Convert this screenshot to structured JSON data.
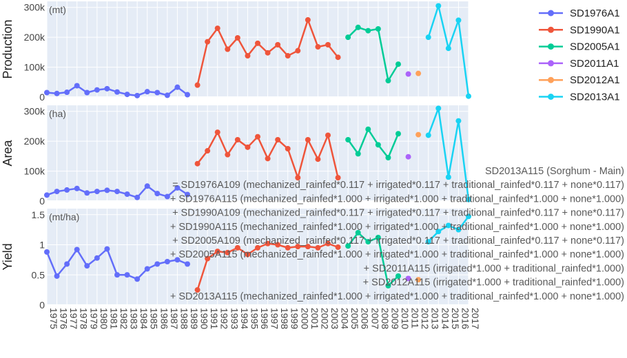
{
  "chart_data": {
    "type": "line",
    "x_categories": [
      "1975",
      "1976",
      "1977",
      "1978",
      "1979",
      "1980",
      "1981",
      "1982",
      "1983",
      "1984",
      "1985",
      "1986",
      "1987",
      "1988",
      "1989",
      "1990",
      "1991",
      "1992",
      "1993",
      "1994",
      "1995",
      "1996",
      "1997",
      "1998",
      "1999",
      "2000",
      "2001",
      "2002",
      "2003",
      "2004",
      "2005",
      "2006",
      "2007",
      "2008",
      "2009",
      "2010",
      "2011",
      "2012",
      "2013",
      "2014",
      "2015",
      "2016",
      "2017"
    ],
    "grid": true,
    "legend_position": "top-right",
    "panels": [
      {
        "key": "production",
        "ylabel": "Production",
        "unit": "(mt)",
        "ylim": [
          0,
          320000
        ],
        "ticks": [
          {
            "v": 0,
            "label": "0"
          },
          {
            "v": 100000,
            "label": "100k"
          },
          {
            "v": 200000,
            "label": "200k"
          },
          {
            "v": 300000,
            "label": "300k"
          }
        ]
      },
      {
        "key": "area",
        "ylabel": "Area",
        "unit": "(ha)",
        "ylim": [
          0,
          320000
        ],
        "ticks": [
          {
            "v": 0,
            "label": "0"
          },
          {
            "v": 100000,
            "label": "100k"
          },
          {
            "v": 200000,
            "label": "200k"
          },
          {
            "v": 300000,
            "label": "300k"
          }
        ]
      },
      {
        "key": "yield",
        "ylabel": "Yield",
        "unit": "(mt/ha)",
        "ylim": [
          0,
          1.6
        ],
        "ticks": [
          {
            "v": 0,
            "label": "0"
          },
          {
            "v": 0.5,
            "label": "0.5"
          },
          {
            "v": 1,
            "label": "1"
          },
          {
            "v": 1.5,
            "label": "1.5"
          }
        ]
      }
    ],
    "series": [
      {
        "name": "SD1976A1",
        "color": "#636efa",
        "x": [
          "1975",
          "1976",
          "1977",
          "1978",
          "1979",
          "1980",
          "1981",
          "1982",
          "1983",
          "1984",
          "1985",
          "1986",
          "1987",
          "1988",
          "1989"
        ],
        "production": [
          15000,
          12000,
          16000,
          38000,
          15000,
          24000,
          28000,
          17000,
          9000,
          5000,
          18000,
          15000,
          6000,
          33000,
          8000
        ],
        "area": [
          20000,
          32000,
          37000,
          42000,
          27000,
          32000,
          36000,
          32000,
          23000,
          12000,
          50000,
          25000,
          15000,
          44000,
          22000
        ],
        "yield": [
          0.88,
          0.48,
          0.68,
          0.92,
          0.65,
          0.78,
          0.93,
          0.5,
          0.5,
          0.43,
          0.6,
          0.68,
          0.72,
          0.75,
          0.68
        ]
      },
      {
        "name": "SD1990A1",
        "color": "#ef553b",
        "x": [
          "1990",
          "1991",
          "1992",
          "1993",
          "1994",
          "1995",
          "1996",
          "1997",
          "1998",
          "1999",
          "2000",
          "2001",
          "2002",
          "2003",
          "2004"
        ],
        "production": [
          40000,
          185000,
          230000,
          160000,
          198000,
          138000,
          180000,
          148000,
          175000,
          138000,
          155000,
          258000,
          168000,
          175000,
          133000
        ],
        "area": [
          125000,
          168000,
          230000,
          155000,
          205000,
          180000,
          215000,
          142000,
          205000,
          175000,
          78000,
          205000,
          140000,
          220000,
          78000
        ],
        "yield": [
          0.25,
          0.77,
          0.89,
          0.87,
          0.95,
          0.84,
          0.95,
          1.02,
          1.0,
          0.95,
          0.97,
          0.97,
          0.95,
          1.02,
          0.96
        ]
      },
      {
        "name": "SD2005A1",
        "color": "#00cc96",
        "x": [
          "2005",
          "2006",
          "2007",
          "2008",
          "2009",
          "2010"
        ],
        "production": [
          200000,
          233000,
          222000,
          228000,
          55000,
          110000
        ],
        "area": [
          205000,
          158000,
          240000,
          188000,
          145000,
          225000
        ],
        "yield": [
          0.98,
          1.2,
          1.05,
          1.12,
          0.32,
          0.48
        ]
      },
      {
        "name": "SD2011A1",
        "color": "#ab63fa",
        "x": [
          "2011"
        ],
        "production": [
          77000
        ],
        "area": [
          148000
        ],
        "yield": [
          0.44
        ]
      },
      {
        "name": "SD2012A1",
        "color": "#ffa15a",
        "x": [
          "2012"
        ],
        "production": [
          79000
        ],
        "area": [
          222000
        ],
        "yield": [
          0.42
        ]
      },
      {
        "name": "SD2013A1",
        "color": "#19d3f3",
        "x": [
          "2013",
          "2014",
          "2015",
          "2016",
          "2017"
        ],
        "production": [
          200000,
          305000,
          163000,
          257000,
          3000
        ],
        "area": [
          220000,
          310000,
          80000,
          268000,
          5000
        ],
        "yield": [
          1.05,
          1.22,
          1.32,
          1.25,
          1.47
        ]
      }
    ],
    "annotation_lines": [
      "SD2013A115 (Sorghum - Main)",
      "= SD1976A109 (mechanized_rainfed*0.117 + irrigated*0.117 + traditional_rainfed*0.117 + none*0.117)",
      "+ SD1976A115 (mechanized_rainfed*1.000 + irrigated*1.000 + traditional_rainfed*1.000 + none*1.000)",
      "+ SD1990A109 (mechanized_rainfed*0.117 + irrigated*0.117 + traditional_rainfed*0.117 + none*0.117)",
      "+ SD1990A115 (mechanized_rainfed*1.000 + irrigated*1.000 + traditional_rainfed*1.000 + none*1.000)",
      "+ SD2005A109 (mechanized_rainfed*0.117 + irrigated*0.117 + traditional_rainfed*0.117 + none*0.117)",
      "+ SD2005A115 (mechanized_rainfed*1.000 + irrigated*1.000 + traditional_rainfed*1.000 + none*1.000)",
      "+ SD2011A115 (irrigated*1.000 + traditional_rainfed*1.000)",
      "+ SD2012A115 (irrigated*1.000 + traditional_rainfed*1.000)",
      "+ SD2013A115 (mechanized_rainfed*1.000 + irrigated*1.000 + traditional_rainfed*1.000 + none*1.000)"
    ]
  }
}
